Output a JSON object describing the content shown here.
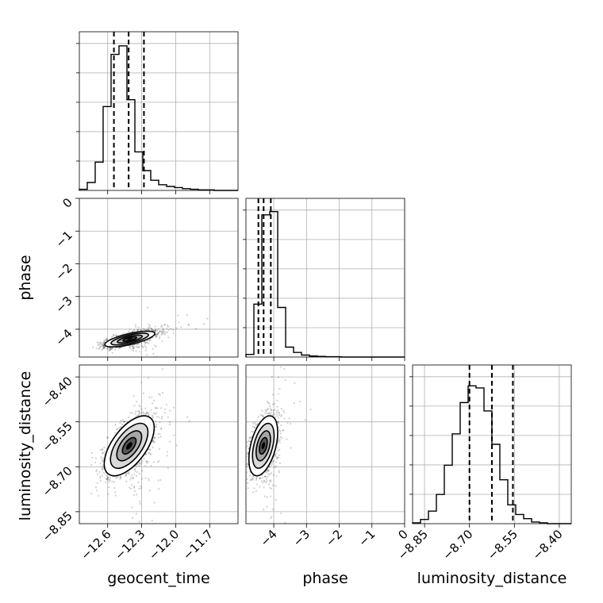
{
  "chart_data": {
    "type": "corner",
    "parameters": [
      {
        "name": "geocent_time",
        "label": "geocent_time",
        "range": [
          -12.85,
          -11.45
        ],
        "ticks": [
          -12.6,
          -12.3,
          -12.0,
          -11.7
        ],
        "tick_labels": [
          "−12.6",
          "−12.3",
          "−12.0",
          "−11.7"
        ]
      },
      {
        "name": "phase",
        "label": "phase",
        "range": [
          -4.85,
          0
        ],
        "ticks": [
          -4,
          -3,
          -2,
          -1,
          0
        ],
        "tick_labels": [
          "−4",
          "−3",
          "−2",
          "−1",
          "0"
        ]
      },
      {
        "name": "luminosity_distance",
        "label": "luminosity_distance",
        "range": [
          -8.89,
          -8.36
        ],
        "ticks": [
          -8.85,
          -8.7,
          -8.55,
          -8.4
        ],
        "tick_labels": [
          "−8.85",
          "−8.70",
          "−8.55",
          "−8.40"
        ]
      }
    ],
    "histograms": [
      {
        "param": "geocent_time",
        "edges_start": -12.85,
        "bin_width": 0.07,
        "counts": [
          2,
          14,
          50,
          148,
          240,
          255,
          160,
          68,
          35,
          18,
          10,
          7,
          5,
          3,
          2,
          1,
          1,
          0,
          0,
          0
        ],
        "ymax": 280,
        "quantiles": [
          -12.545,
          -12.415,
          -12.28
        ]
      },
      {
        "param": "phase",
        "edges_start": -4.85,
        "bin_width": 0.2425,
        "counts": [
          8,
          160,
          430,
          440,
          150,
          30,
          14,
          6,
          3,
          2,
          1,
          1,
          0,
          0,
          0,
          0,
          0,
          0,
          0,
          0
        ],
        "ymax": 480,
        "quantiles": [
          -4.47,
          -4.31,
          -4.09
        ]
      },
      {
        "param": "luminosity_distance",
        "edges_start": -8.89,
        "bin_width": 0.0265,
        "counts": [
          2,
          10,
          30,
          70,
          140,
          215,
          290,
          330,
          325,
          270,
          190,
          105,
          45,
          22,
          12,
          4,
          2,
          0,
          0,
          0
        ],
        "ymax": 380,
        "quantiles": [
          -8.7,
          -8.625,
          -8.555
        ]
      }
    ],
    "contours_2d": [
      {
        "x": "geocent_time",
        "y": "phase",
        "center": [
          -12.405,
          -4.3
        ],
        "spread": [
          0.11,
          0.12
        ],
        "correlation": 0.7
      },
      {
        "x": "geocent_time",
        "y": "luminosity_distance",
        "center": [
          -12.41,
          -8.63
        ],
        "spread": [
          0.11,
          0.05
        ],
        "correlation": 0.6
      },
      {
        "x": "phase",
        "y": "luminosity_distance",
        "center": [
          -4.32,
          -8.63
        ],
        "spread": [
          0.22,
          0.05
        ],
        "correlation": 0.45
      }
    ],
    "quantile_line_style": "dashed",
    "grid": true
  }
}
